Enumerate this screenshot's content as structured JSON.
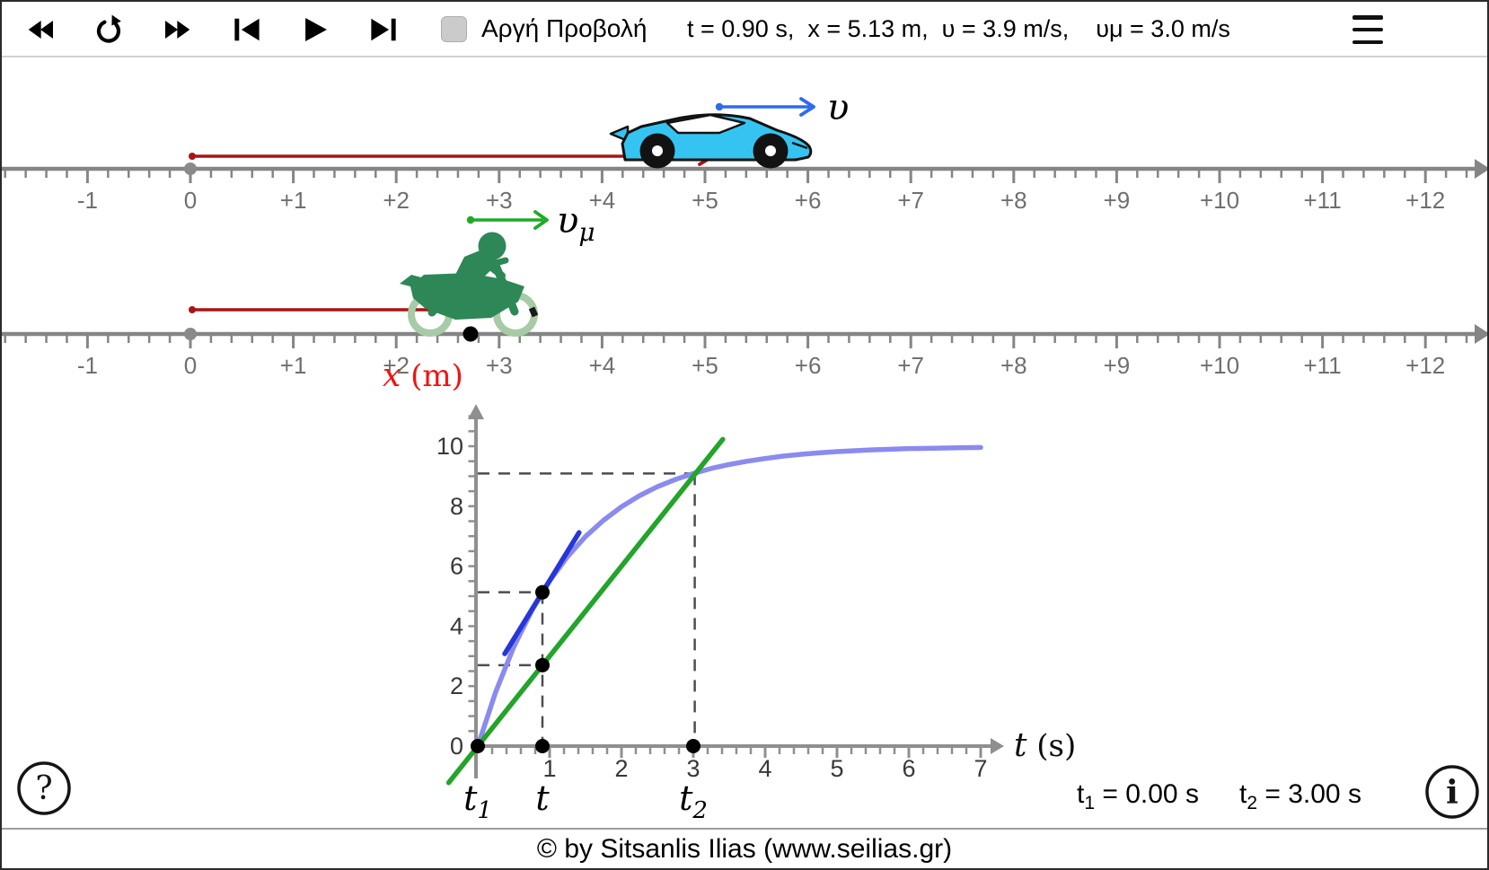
{
  "toolbar": {
    "buttons": [
      {
        "id": "fast-rewind",
        "icon": "fast-rewind-icon"
      },
      {
        "id": "reset",
        "icon": "reset-icon"
      },
      {
        "id": "fast-forward",
        "icon": "fast-forward-icon"
      },
      {
        "id": "skip-to-start",
        "icon": "skip-to-start-icon"
      },
      {
        "id": "play",
        "icon": "play-icon"
      },
      {
        "id": "skip-to-end",
        "icon": "skip-to-end-icon"
      }
    ],
    "checkbox": {
      "label": "Αργή Προβολή",
      "checked": false
    },
    "status": "t = 0.90 s,  x = 5.13 m,  υ = 3.9 m/s,    υμ = 3.0 m/s",
    "menu_icon": "hamburger-menu-icon"
  },
  "ruler": {
    "labels": [
      "-1",
      "0",
      "+1",
      "+2",
      "+3",
      "+4",
      "+5",
      "+6",
      "+7",
      "+8",
      "+9",
      "+10",
      "+11",
      "+12"
    ],
    "first_value": -1
  },
  "car": {
    "velocity_label": "υ",
    "position_m": 5.13,
    "velocity_mps": 3.9
  },
  "motorcycle": {
    "velocity_label_base": "υ",
    "velocity_label_sub": "μ",
    "position_m": 2.7,
    "velocity_mps": 3.0
  },
  "graph": {
    "y_axis_label_var": "x",
    "y_axis_label_unit": " (m)",
    "x_axis_label_var": "t",
    "x_axis_label_unit": " (s)",
    "y_ticks": [
      0,
      2,
      4,
      6,
      8,
      10
    ],
    "x_ticks": [
      1,
      2,
      3,
      4,
      5,
      6,
      7
    ],
    "time_markers": [
      {
        "base": "t",
        "sub": "1",
        "t": 0
      },
      {
        "base": "t",
        "sub": "",
        "t": 0.9
      },
      {
        "base": "t",
        "sub": "2",
        "t": 3
      }
    ]
  },
  "chart_data": {
    "type": "line",
    "title": "",
    "xlabel": "t (s)",
    "ylabel": "x (m)",
    "xlim": [
      0,
      7.3
    ],
    "ylim": [
      0,
      11
    ],
    "grid": false,
    "series": [
      {
        "name": "car-position-curve",
        "color": "#8a8aef",
        "width": 5.5,
        "x": [
          0,
          0.25,
          0.5,
          0.75,
          1,
          1.25,
          1.5,
          1.75,
          2,
          2.25,
          2.5,
          2.75,
          3,
          3.25,
          3.5,
          3.75,
          4,
          4.25,
          4.5,
          4.75,
          5,
          5.25,
          5.5,
          5.75,
          6,
          6.25,
          6.5,
          6.75,
          7
        ],
        "y": [
          0,
          1.81,
          3.3,
          4.51,
          5.51,
          6.32,
          6.99,
          7.53,
          7.98,
          8.35,
          8.65,
          8.89,
          9.09,
          9.26,
          9.39,
          9.5,
          9.59,
          9.67,
          9.73,
          9.78,
          9.82,
          9.85,
          9.88,
          9.9,
          9.92,
          9.93,
          9.94,
          9.95,
          9.96
        ]
      },
      {
        "name": "motorcycle-uniform-line",
        "color": "#23a42a",
        "width": 5.5,
        "x": [
          -0.405,
          3.41
        ],
        "y": [
          -1.22,
          10.23
        ]
      },
      {
        "name": "tangent-at-t",
        "color": "#2636d8",
        "width": 5.5,
        "x": [
          0.375,
          1.41
        ],
        "y": [
          3.08,
          7.12
        ]
      }
    ],
    "points": [
      [
        0,
        0
      ],
      [
        0.9,
        5.13
      ],
      [
        0.9,
        2.7
      ],
      [
        0.9,
        0
      ],
      [
        3,
        0
      ]
    ],
    "guides": [
      [
        [
          0,
          9.09
        ],
        [
          3.02,
          9.09
        ]
      ],
      [
        [
          3.02,
          9.09
        ],
        [
          3.02,
          0
        ]
      ],
      [
        [
          0,
          5.13
        ],
        [
          0.9,
          5.13
        ]
      ],
      [
        [
          0.9,
          5.13
        ],
        [
          0.9,
          0
        ]
      ],
      [
        [
          0,
          2.7
        ],
        [
          0.9,
          2.7
        ]
      ]
    ]
  },
  "readouts": {
    "t1_base": "t",
    "t1_sub": "1",
    "t1_rest": " = 0.00 s",
    "t2_base": "t",
    "t2_sub": "2",
    "t2_rest": " = 3.00 s"
  },
  "help": {
    "label": "?"
  },
  "info": {
    "label": "i"
  },
  "footer": {
    "copyright": "© by Sitsanlis Ilias (www.seilias.gr)"
  },
  "colors": {
    "position_vector_red": "#a81414",
    "car_velocity_blue": "#2e6bf0",
    "moto_velocity_green": "#1faa26",
    "car_body_cyan": "#35c4f2",
    "moto_body_green": "#2e8757",
    "curve_light_blue": "#8a8aef",
    "tangent_blue": "#2636d8",
    "line_green": "#23a42a",
    "axis_gray": "#8f8f8f",
    "label_red": "#f31212"
  }
}
